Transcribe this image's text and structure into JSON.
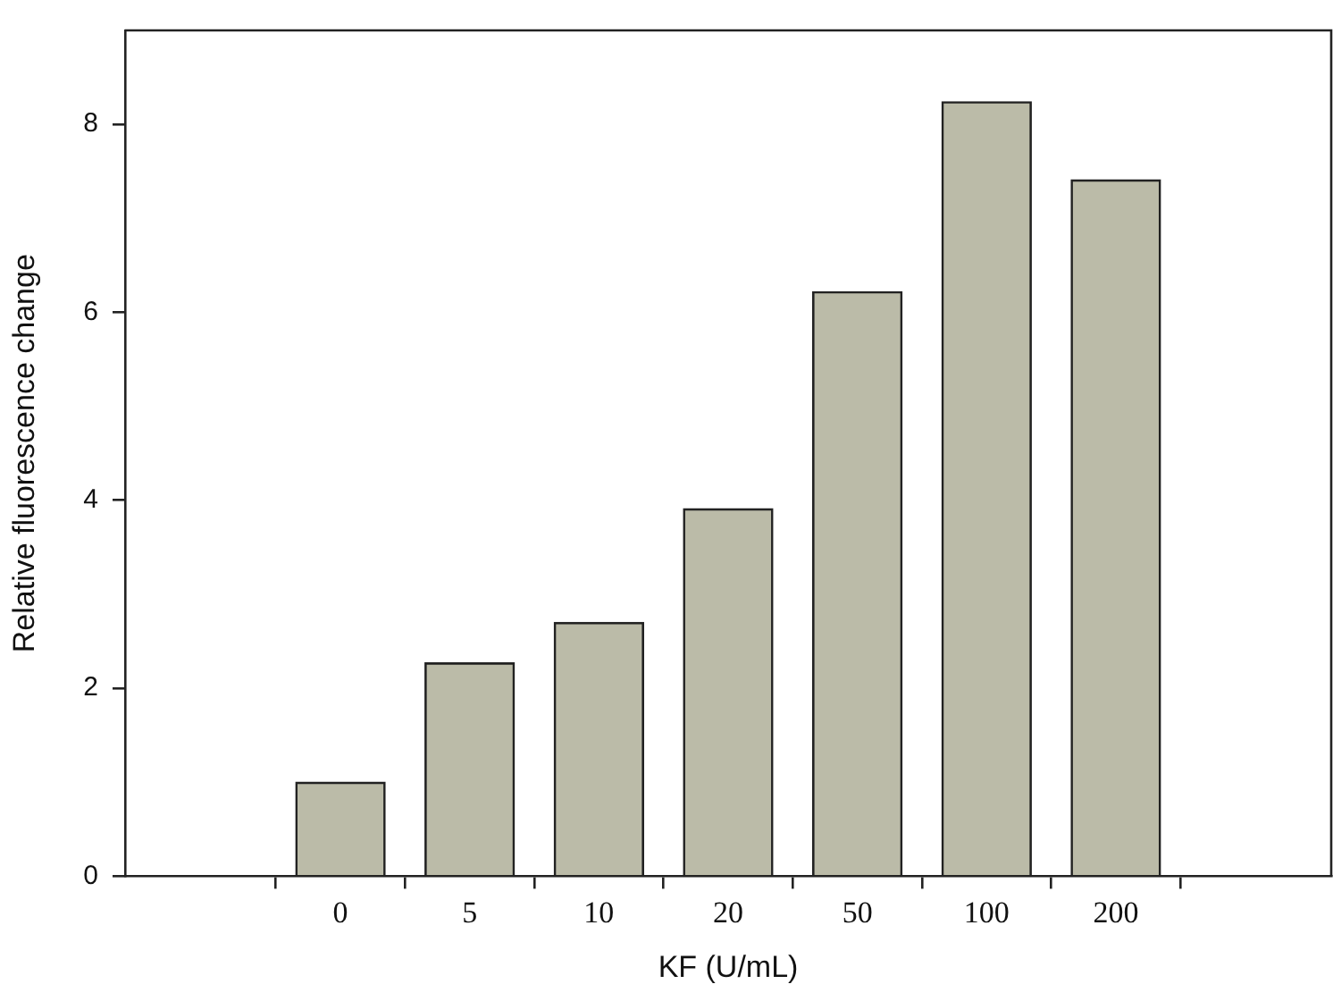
{
  "chart_data": {
    "type": "bar",
    "xlabel": "KF (U/mL)",
    "ylabel": "Relative fluorescence change",
    "categories": [
      "0",
      "5",
      "10",
      "20",
      "50",
      "100",
      "200"
    ],
    "values": [
      1.0,
      2.27,
      2.7,
      3.91,
      6.22,
      8.24,
      7.41
    ],
    "color": "#bbbba8",
    "ylim": [
      0,
      9
    ],
    "yticks": [
      0,
      2,
      4,
      6,
      8
    ],
    "grid": false,
    "legend": false
  }
}
